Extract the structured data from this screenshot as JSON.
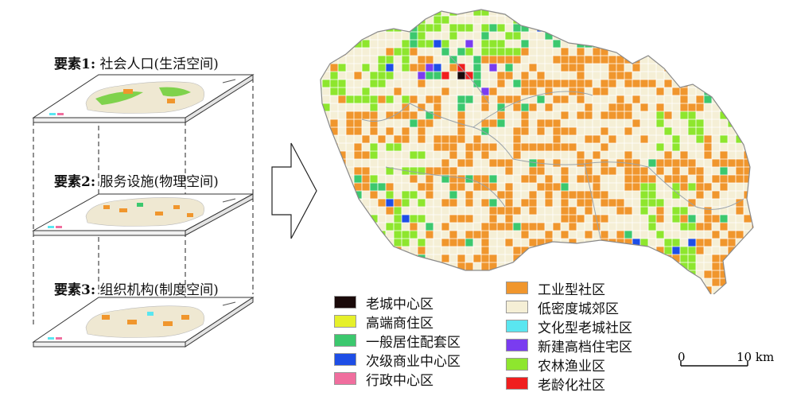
{
  "layers": [
    {
      "title_bold": "要素1:",
      "title_rest": " 社会人口(生活空间)"
    },
    {
      "title_bold": "要素2:",
      "title_rest": " 服务设施(物理空间)"
    },
    {
      "title_bold": "要素3:",
      "title_rest": " 组织机构(制度空间)"
    }
  ],
  "legend": [
    {
      "label": "老城中心区",
      "color": "#1a0a0a"
    },
    {
      "label": "高端商住区",
      "color": "#e6f02a"
    },
    {
      "label": "一般居住配套区",
      "color": "#3cc86e"
    },
    {
      "label": "次级商业中心区",
      "color": "#1e4ee6"
    },
    {
      "label": "行政中心区",
      "color": "#f06e9e"
    },
    {
      "label": "工业型社区",
      "color": "#f0962d"
    },
    {
      "label": "低密度城郊区",
      "color": "#f5efd6"
    },
    {
      "label": "文化型老城社区",
      "color": "#5ae6f0"
    },
    {
      "label": "新建高档住宅区",
      "color": "#7a3cf0"
    },
    {
      "label": "农林渔业区",
      "color": "#8ee62e"
    },
    {
      "label": "老龄化社区",
      "color": "#f01e1e"
    }
  ],
  "scale": {
    "zero": "0",
    "distance": "10 km"
  },
  "map_colors": {
    "base": "#f5efd6",
    "grid": "#ffffff",
    "border": "#9a9a9a"
  }
}
